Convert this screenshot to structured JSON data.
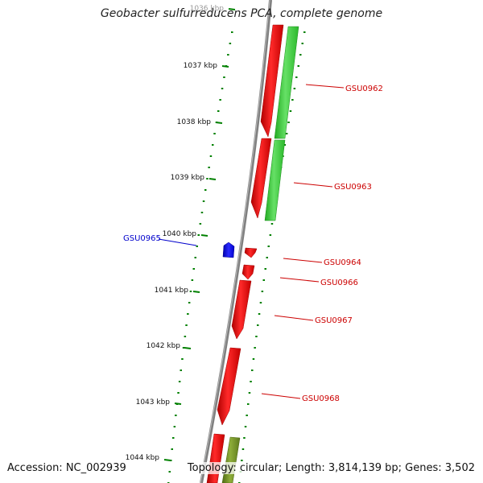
{
  "title": "Geobacter sulfurreducens PCA, complete genome",
  "footer": {
    "accession": "Accession: NC_002939",
    "summary": "Topology: circular; Length: 3,814,139 bp; Genes: 3,502"
  },
  "colors": {
    "backbone": "#808080",
    "forward_gene": "#ff0000",
    "reverse_gene": "#0000ff",
    "cds_track_light": "#33cc33",
    "cds_track_olive": "#6b8e23",
    "tick": "#008000",
    "label_forward": "#cc0000",
    "label_reverse": "#0000cc"
  },
  "ruler": {
    "unit": "kbp",
    "ticks": [
      "1036 kbp",
      "1037 kbp",
      "1038 kbp",
      "1039 kbp",
      "1040 kbp",
      "1041 kbp",
      "1042 kbp",
      "1043 kbp",
      "1044 kbp"
    ]
  },
  "genes": [
    {
      "id": "GSU0962",
      "label": "GSU0962",
      "strand": "+"
    },
    {
      "id": "GSU0963",
      "label": "GSU0963",
      "strand": "+"
    },
    {
      "id": "GSU0964",
      "label": "GSU0964",
      "strand": "+"
    },
    {
      "id": "GSU0965",
      "label": "GSU0965",
      "strand": "-"
    },
    {
      "id": "GSU0966",
      "label": "GSU0966",
      "strand": "+"
    },
    {
      "id": "GSU0967",
      "label": "GSU0967",
      "strand": "+"
    },
    {
      "id": "GSU0968",
      "label": "GSU0968",
      "strand": "+"
    }
  ]
}
